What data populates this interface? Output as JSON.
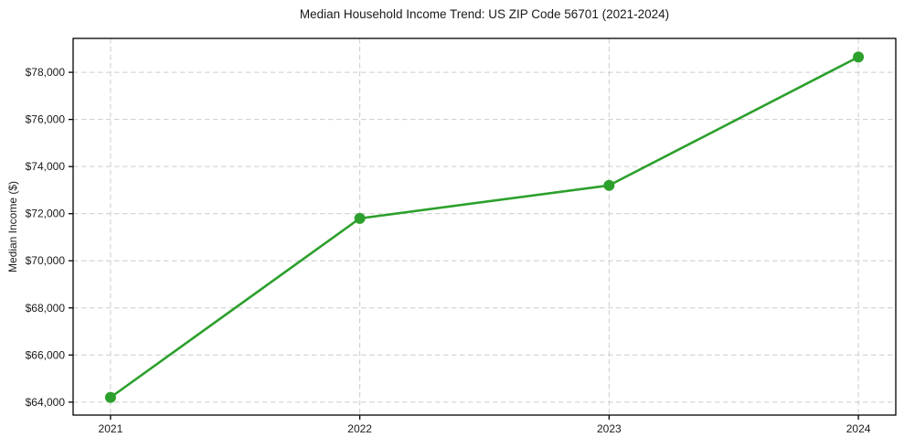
{
  "chart_data": {
    "type": "line",
    "title": "Median Household Income Trend: US ZIP Code 56701 (2021-2024)",
    "xlabel": "",
    "ylabel": "Median Income ($)",
    "x": [
      2021,
      2022,
      2023,
      2024
    ],
    "series": [
      {
        "name": "Median Household Income",
        "values": [
          64200,
          71800,
          73200,
          78650
        ]
      }
    ],
    "xticks": [
      2021,
      2022,
      2023,
      2024
    ],
    "xtick_labels": [
      "2021",
      "2022",
      "2023",
      "2024"
    ],
    "yticks": [
      64000,
      66000,
      68000,
      70000,
      72000,
      74000,
      76000,
      78000
    ],
    "ytick_labels": [
      "$64,000",
      "$66,000",
      "$68,000",
      "$70,000",
      "$72,000",
      "$74,000",
      "$76,000",
      "$78,000"
    ],
    "xlim": [
      2020.85,
      2024.15
    ],
    "ylim": [
      63450,
      79440
    ],
    "grid": true,
    "legend": "none",
    "colors": {
      "line": "#2ca02c",
      "marker": "#2ca02c",
      "grid": "#cccccc",
      "spine": "#000000",
      "text": "#1a1a1a",
      "background": "#ffffff"
    }
  }
}
